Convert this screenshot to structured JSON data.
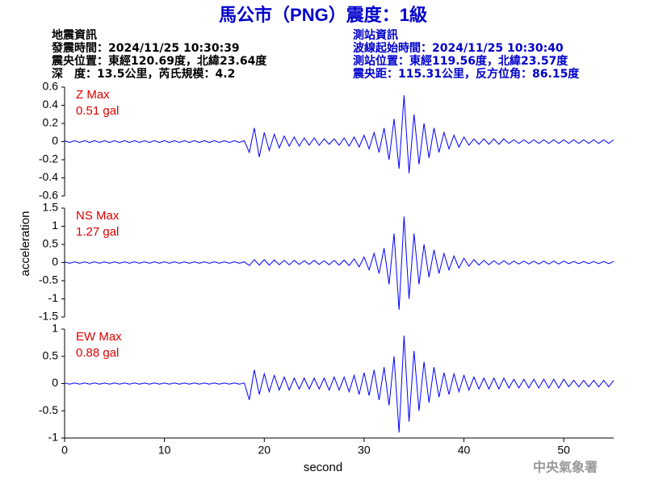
{
  "title": "馬公市（PNG）震度：1級",
  "event_info": [
    "地震資訊",
    "發震時間：2024/11/25 10:30:39",
    "震央位置：東經120.69度，北緯23.64度",
    "深　度：13.5公里，芮氏規模：4.2"
  ],
  "station_info": [
    "測站資訊",
    "波線起始時間：2024/11/25 10:30:40",
    "測站位置：東經119.56度，北緯23.57度",
    "震央距：115.31公里，反方位角：86.15度"
  ],
  "y_label": "acceleration",
  "x_label": "second",
  "watermark": "中央氣象署",
  "chart_data": [
    {
      "type": "line",
      "annotation": [
        "Z Max",
        "0.51 gal"
      ],
      "color": "#0000ff",
      "xlim": [
        0,
        55
      ],
      "ylim": [
        -0.6,
        0.6
      ],
      "yticks": [
        -0.6,
        -0.4,
        -0.2,
        0,
        0.2,
        0.4,
        0.6
      ],
      "x": [
        0,
        0.5,
        1,
        1.5,
        2,
        2.5,
        3,
        3.5,
        4,
        4.5,
        5,
        5.5,
        6,
        6.5,
        7,
        7.5,
        8,
        8.5,
        9,
        9.5,
        10,
        10.5,
        11,
        11.5,
        12,
        12.5,
        13,
        13.5,
        14,
        14.5,
        15,
        15.5,
        16,
        16.5,
        17,
        17.5,
        18,
        18.5,
        19,
        19.5,
        20,
        20.5,
        21,
        21.5,
        22,
        22.5,
        23,
        23.5,
        24,
        24.5,
        25,
        25.5,
        26,
        26.5,
        27,
        27.5,
        28,
        28.5,
        29,
        29.5,
        30,
        30.5,
        31,
        31.5,
        32,
        32.5,
        33,
        33.5,
        34,
        34.5,
        35,
        35.5,
        36,
        36.5,
        37,
        37.5,
        38,
        38.5,
        39,
        39.5,
        40,
        40.5,
        41,
        41.5,
        42,
        42.5,
        43,
        43.5,
        44,
        44.5,
        45,
        45.5,
        46,
        46.5,
        47,
        47.5,
        48,
        48.5,
        49,
        49.5,
        50,
        50.5,
        51,
        51.5,
        52,
        52.5,
        53,
        53.5,
        54,
        54.5,
        55
      ],
      "values": [
        0.01,
        -0.01,
        0.01,
        -0.01,
        0.01,
        -0.01,
        0.01,
        -0.01,
        0.01,
        -0.01,
        0.01,
        -0.01,
        0.01,
        -0.01,
        0.01,
        -0.01,
        0.01,
        -0.01,
        0.01,
        -0.01,
        0.01,
        -0.01,
        0.01,
        -0.01,
        0.01,
        -0.01,
        0.01,
        -0.01,
        0.01,
        -0.01,
        0.01,
        -0.01,
        0.01,
        -0.01,
        0.01,
        -0.01,
        0.01,
        -0.12,
        0.15,
        -0.17,
        0.1,
        -0.1,
        0.08,
        -0.07,
        0.06,
        -0.05,
        0.05,
        -0.05,
        0.04,
        -0.04,
        0.04,
        -0.04,
        0.03,
        -0.03,
        0.03,
        -0.04,
        0.04,
        -0.05,
        0.05,
        -0.06,
        0.07,
        -0.08,
        0.1,
        -0.12,
        0.15,
        -0.2,
        0.25,
        -0.3,
        0.51,
        -0.35,
        0.3,
        -0.25,
        0.2,
        -0.18,
        0.15,
        -0.12,
        0.1,
        -0.08,
        0.07,
        -0.06,
        0.05,
        -0.04,
        0.03,
        -0.03,
        0.03,
        -0.03,
        0.03,
        -0.03,
        0.03,
        -0.02,
        0.02,
        -0.02,
        0.02,
        -0.02,
        0.02,
        -0.02,
        0.02,
        -0.02,
        0.02,
        -0.02,
        0.02,
        -0.02,
        0.02,
        -0.02,
        0.02,
        -0.02,
        0.02,
        -0.02,
        0.02,
        -0.02,
        0.02
      ]
    },
    {
      "type": "line",
      "annotation": [
        "NS Max",
        "1.27 gal"
      ],
      "color": "#0000ff",
      "xlim": [
        0,
        55
      ],
      "ylim": [
        -1.5,
        1.5
      ],
      "yticks": [
        -1.5,
        -1,
        -0.5,
        0,
        0.5,
        1,
        1.5
      ],
      "x": [
        0,
        0.5,
        1,
        1.5,
        2,
        2.5,
        3,
        3.5,
        4,
        4.5,
        5,
        5.5,
        6,
        6.5,
        7,
        7.5,
        8,
        8.5,
        9,
        9.5,
        10,
        10.5,
        11,
        11.5,
        12,
        12.5,
        13,
        13.5,
        14,
        14.5,
        15,
        15.5,
        16,
        16.5,
        17,
        17.5,
        18,
        18.5,
        19,
        19.5,
        20,
        20.5,
        21,
        21.5,
        22,
        22.5,
        23,
        23.5,
        24,
        24.5,
        25,
        25.5,
        26,
        26.5,
        27,
        27.5,
        28,
        28.5,
        29,
        29.5,
        30,
        30.5,
        31,
        31.5,
        32,
        32.5,
        33,
        33.5,
        34,
        34.5,
        35,
        35.5,
        36,
        36.5,
        37,
        37.5,
        38,
        38.5,
        39,
        39.5,
        40,
        40.5,
        41,
        41.5,
        42,
        42.5,
        43,
        43.5,
        44,
        44.5,
        45,
        45.5,
        46,
        46.5,
        47,
        47.5,
        48,
        48.5,
        49,
        49.5,
        50,
        50.5,
        51,
        51.5,
        52,
        52.5,
        53,
        53.5,
        54,
        54.5,
        55
      ],
      "values": [
        0.02,
        -0.02,
        0.02,
        -0.02,
        0.02,
        -0.02,
        0.02,
        -0.02,
        0.02,
        -0.02,
        0.02,
        -0.02,
        0.02,
        -0.02,
        0.02,
        -0.02,
        0.02,
        -0.02,
        0.02,
        -0.02,
        0.02,
        -0.02,
        0.02,
        -0.02,
        0.02,
        -0.02,
        0.02,
        -0.02,
        0.02,
        -0.02,
        0.02,
        -0.02,
        0.02,
        -0.02,
        0.02,
        -0.02,
        0.02,
        -0.08,
        0.08,
        -0.07,
        0.08,
        -0.07,
        0.07,
        -0.06,
        0.06,
        -0.06,
        0.06,
        -0.05,
        0.05,
        -0.05,
        0.06,
        -0.05,
        0.05,
        -0.06,
        0.06,
        -0.07,
        0.07,
        -0.08,
        0.1,
        -0.12,
        0.15,
        -0.2,
        0.25,
        -0.3,
        0.4,
        -0.6,
        0.8,
        -1.3,
        1.27,
        -1.0,
        0.8,
        -0.6,
        0.5,
        -0.4,
        0.35,
        -0.3,
        0.25,
        -0.2,
        0.18,
        -0.15,
        0.12,
        -0.1,
        0.08,
        -0.07,
        0.06,
        -0.06,
        0.05,
        -0.05,
        0.05,
        -0.05,
        0.04,
        -0.04,
        0.04,
        -0.04,
        0.04,
        -0.04,
        0.04,
        -0.04,
        0.04,
        -0.04,
        0.04,
        -0.03,
        0.03,
        -0.03,
        0.03,
        -0.03,
        0.03,
        -0.03,
        0.03,
        -0.03,
        0.03
      ]
    },
    {
      "type": "line",
      "annotation": [
        "EW Max",
        "0.88 gal"
      ],
      "color": "#0000ff",
      "xlim": [
        0,
        55
      ],
      "xticks": [
        0,
        10,
        20,
        30,
        40,
        50
      ],
      "ylim": [
        -1,
        1
      ],
      "yticks": [
        -1,
        -0.5,
        0,
        0.5,
        1
      ],
      "x": [
        0,
        0.5,
        1,
        1.5,
        2,
        2.5,
        3,
        3.5,
        4,
        4.5,
        5,
        5.5,
        6,
        6.5,
        7,
        7.5,
        8,
        8.5,
        9,
        9.5,
        10,
        10.5,
        11,
        11.5,
        12,
        12.5,
        13,
        13.5,
        14,
        14.5,
        15,
        15.5,
        16,
        16.5,
        17,
        17.5,
        18,
        18.5,
        19,
        19.5,
        20,
        20.5,
        21,
        21.5,
        22,
        22.5,
        23,
        23.5,
        24,
        24.5,
        25,
        25.5,
        26,
        26.5,
        27,
        27.5,
        28,
        28.5,
        29,
        29.5,
        30,
        30.5,
        31,
        31.5,
        32,
        32.5,
        33,
        33.5,
        34,
        34.5,
        35,
        35.5,
        36,
        36.5,
        37,
        37.5,
        38,
        38.5,
        39,
        39.5,
        40,
        40.5,
        41,
        41.5,
        42,
        42.5,
        43,
        43.5,
        44,
        44.5,
        45,
        45.5,
        46,
        46.5,
        47,
        47.5,
        48,
        48.5,
        49,
        49.5,
        50,
        50.5,
        51,
        51.5,
        52,
        52.5,
        53,
        53.5,
        54,
        54.5,
        55
      ],
      "values": [
        0.01,
        -0.01,
        0.01,
        -0.01,
        0.01,
        -0.01,
        0.01,
        -0.01,
        0.01,
        -0.01,
        0.01,
        -0.01,
        0.01,
        -0.01,
        0.01,
        -0.01,
        0.01,
        -0.01,
        0.01,
        -0.01,
        0.01,
        -0.01,
        0.01,
        -0.01,
        0.01,
        -0.01,
        0.01,
        -0.01,
        0.01,
        -0.01,
        0.01,
        -0.01,
        0.01,
        -0.01,
        0.01,
        -0.01,
        0.01,
        -0.3,
        0.25,
        -0.2,
        0.18,
        -0.15,
        0.15,
        -0.12,
        0.12,
        -0.12,
        0.1,
        -0.1,
        0.1,
        -0.1,
        0.1,
        -0.1,
        0.1,
        -0.12,
        0.12,
        -0.12,
        0.12,
        -0.15,
        0.15,
        -0.2,
        0.2,
        -0.22,
        0.25,
        -0.3,
        0.3,
        -0.4,
        0.5,
        -0.9,
        0.88,
        -0.7,
        0.6,
        -0.5,
        0.4,
        -0.35,
        0.3,
        -0.25,
        0.2,
        -0.2,
        0.18,
        -0.15,
        0.15,
        -0.12,
        0.12,
        -0.1,
        0.1,
        -0.1,
        0.1,
        -0.1,
        0.1,
        -0.08,
        0.08,
        -0.08,
        0.08,
        -0.08,
        0.08,
        -0.08,
        0.08,
        -0.08,
        0.08,
        -0.08,
        0.08,
        -0.06,
        0.06,
        -0.06,
        0.06,
        -0.06,
        0.06,
        -0.06,
        0.06,
        -0.06,
        0.06
      ]
    }
  ]
}
